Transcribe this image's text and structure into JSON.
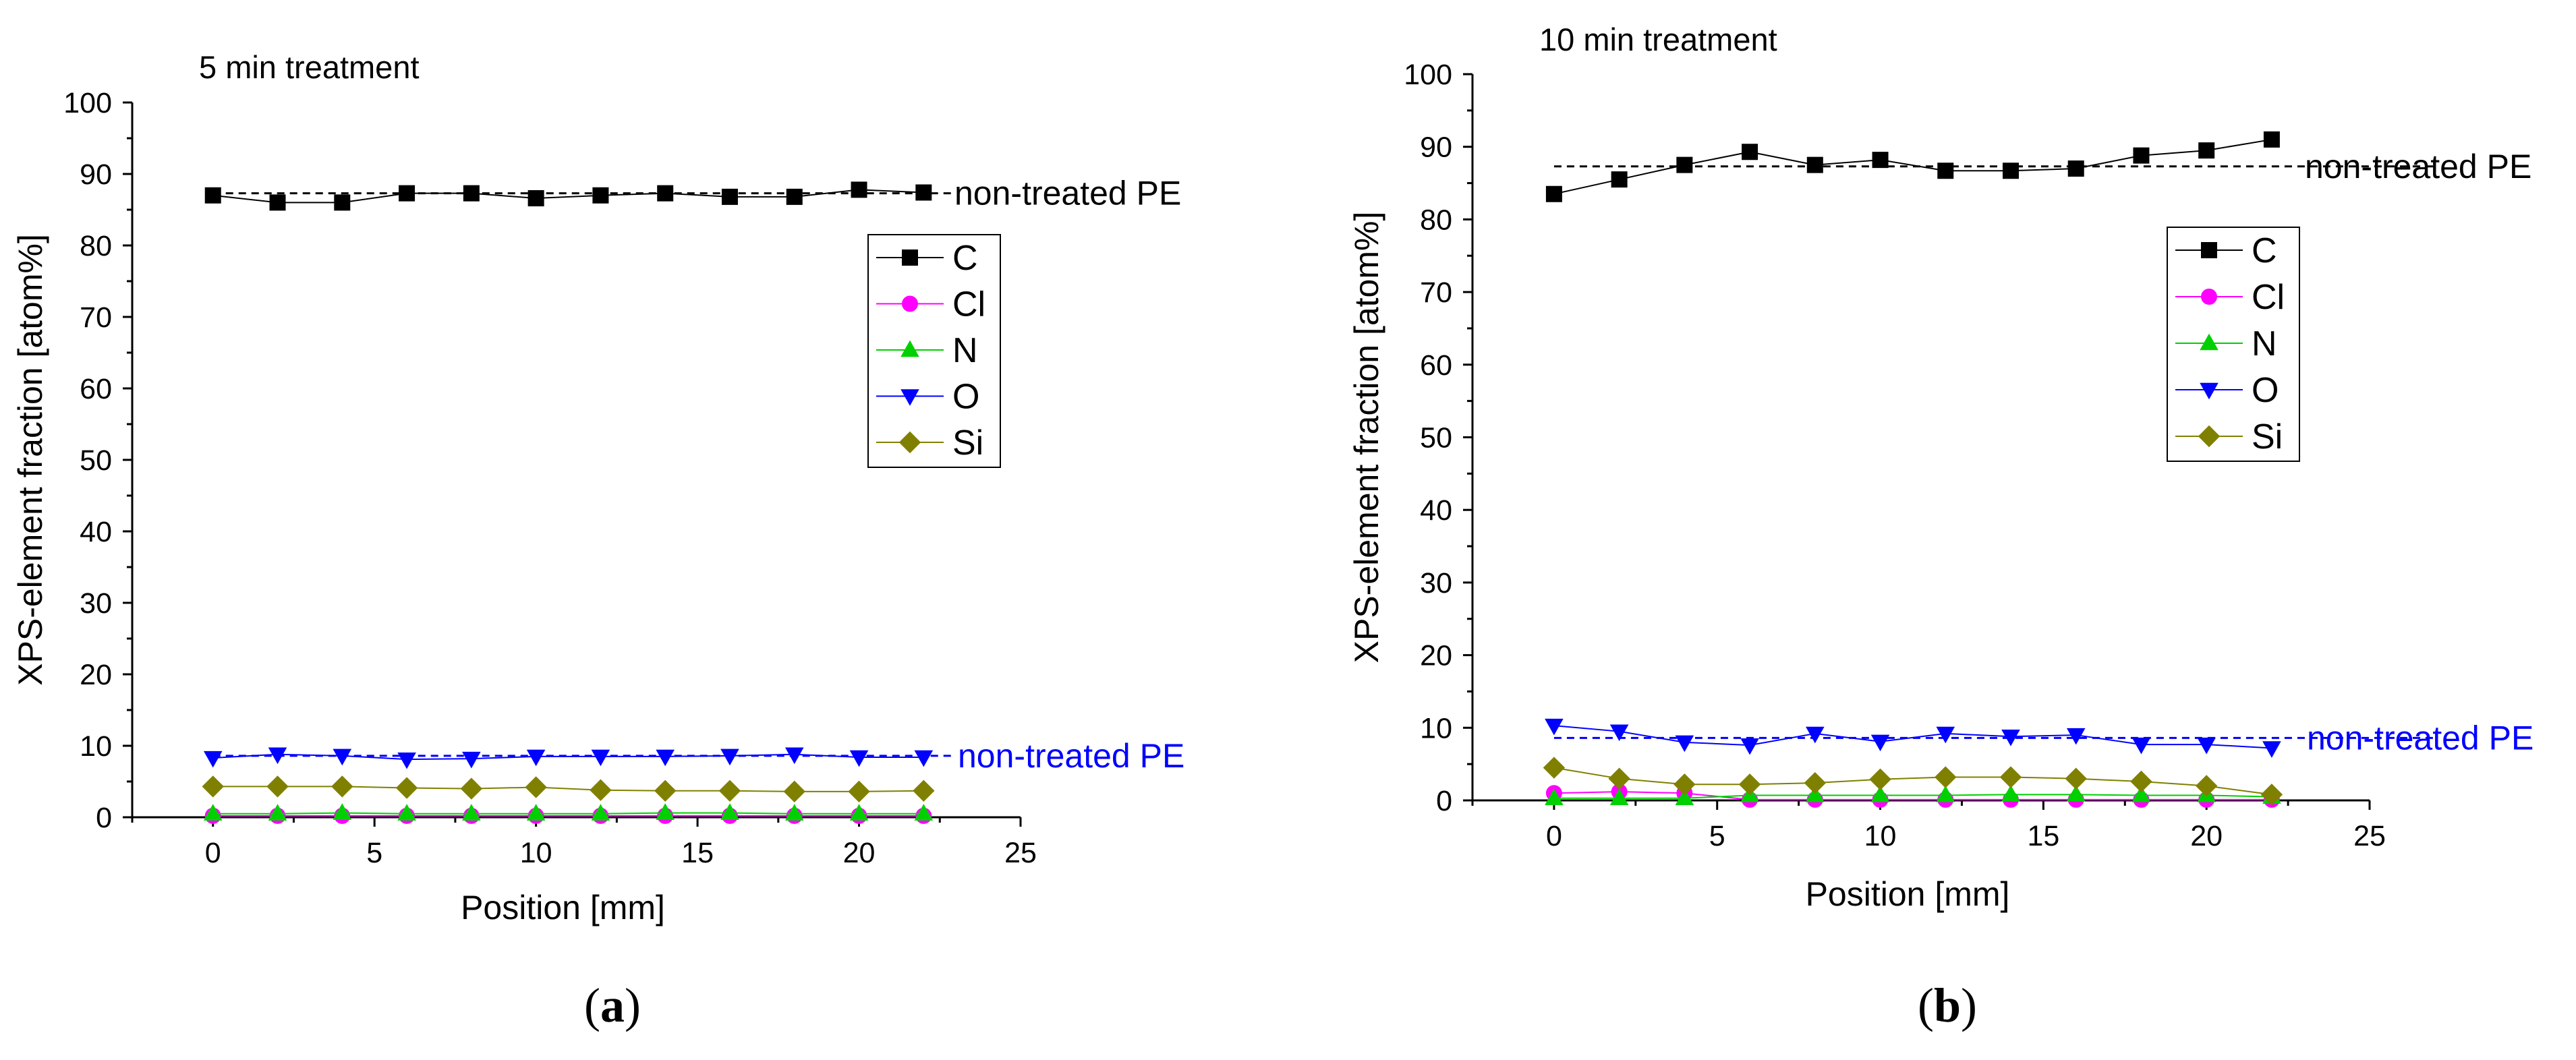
{
  "chart_data": [
    {
      "type": "line",
      "panel_label": "a",
      "title": "5 min treatment",
      "xlabel": "Position [mm]",
      "ylabel": "XPS-element fraction [atom%]",
      "xlim": [
        -2.5,
        25
      ],
      "ylim": [
        0,
        100
      ],
      "xticks": [
        0,
        5,
        10,
        15,
        20,
        25
      ],
      "yticks": [
        0,
        10,
        20,
        30,
        40,
        50,
        60,
        70,
        80,
        90,
        100
      ],
      "x": [
        0,
        2,
        4,
        6,
        8,
        10,
        12,
        14,
        16,
        18,
        20,
        22
      ],
      "series": [
        {
          "name": "C",
          "color": "#000000",
          "marker": "square",
          "values": [
            87.0,
            86.0,
            86.0,
            87.3,
            87.3,
            86.6,
            87.0,
            87.3,
            86.8,
            86.8,
            87.8,
            87.4
          ]
        },
        {
          "name": "Cl",
          "color": "#ff00ff",
          "marker": "circle",
          "values": [
            0.2,
            0.2,
            0.2,
            0.2,
            0.2,
            0.2,
            0.2,
            0.2,
            0.2,
            0.2,
            0.2,
            0.2
          ]
        },
        {
          "name": "N",
          "color": "#00d000",
          "marker": "triangle-up",
          "values": [
            0.5,
            0.5,
            0.6,
            0.5,
            0.5,
            0.5,
            0.5,
            0.6,
            0.6,
            0.5,
            0.5,
            0.5
          ]
        },
        {
          "name": "O",
          "color": "#0000ff",
          "marker": "triangle-down",
          "values": [
            8.3,
            8.8,
            8.6,
            8.1,
            8.2,
            8.5,
            8.5,
            8.5,
            8.6,
            8.8,
            8.4,
            8.4
          ]
        },
        {
          "name": "Si",
          "color": "#808000",
          "marker": "diamond",
          "values": [
            4.3,
            4.3,
            4.3,
            4.1,
            4.0,
            4.2,
            3.8,
            3.7,
            3.7,
            3.6,
            3.6,
            3.7
          ]
        }
      ],
      "reference_lines": [
        {
          "label": "non-treated PE",
          "y": 87.3,
          "color": "#000000",
          "x_range": [
            0,
            23
          ]
        },
        {
          "label": "non-treated PE",
          "y": 8.6,
          "color": "#0000ff",
          "x_range": [
            0,
            23
          ]
        }
      ],
      "legend": {
        "position": "center-right",
        "entries": [
          "C",
          "Cl",
          "N",
          "O",
          "Si"
        ]
      }
    },
    {
      "type": "line",
      "panel_label": "b",
      "title": "10 min treatment",
      "xlabel": "Position [mm]",
      "ylabel": "XPS-element fraction [atom%]",
      "xlim": [
        -2.5,
        25
      ],
      "ylim": [
        0,
        100
      ],
      "xticks": [
        0,
        5,
        10,
        15,
        20,
        25
      ],
      "yticks": [
        0,
        10,
        20,
        30,
        40,
        50,
        60,
        70,
        80,
        90,
        100
      ],
      "x": [
        0,
        2,
        4,
        6,
        8,
        10,
        12,
        14,
        16,
        18,
        20,
        22
      ],
      "series": [
        {
          "name": "C",
          "color": "#000000",
          "marker": "square",
          "values": [
            83.5,
            85.5,
            87.5,
            89.3,
            87.5,
            88.2,
            86.7,
            86.7,
            87.0,
            88.8,
            89.5,
            91.0
          ]
        },
        {
          "name": "Cl",
          "color": "#ff00ff",
          "marker": "circle",
          "values": [
            1.0,
            1.2,
            1.0,
            0.1,
            0.1,
            0.1,
            0.1,
            0.1,
            0.1,
            0.1,
            0.1,
            0.1
          ]
        },
        {
          "name": "N",
          "color": "#00d000",
          "marker": "triangle-up",
          "values": [
            0.3,
            0.3,
            0.3,
            0.7,
            0.7,
            0.7,
            0.7,
            0.8,
            0.8,
            0.7,
            0.7,
            0.5
          ]
        },
        {
          "name": "O",
          "color": "#0000ff",
          "marker": "triangle-down",
          "values": [
            10.3,
            9.5,
            8.0,
            7.6,
            9.2,
            8.1,
            9.2,
            8.8,
            9.0,
            7.7,
            7.7,
            7.2
          ]
        },
        {
          "name": "Si",
          "color": "#808000",
          "marker": "diamond",
          "values": [
            4.5,
            3.0,
            2.2,
            2.2,
            2.4,
            2.9,
            3.2,
            3.2,
            3.0,
            2.6,
            2.0,
            0.8
          ]
        }
      ],
      "reference_lines": [
        {
          "label": "non-treated PE",
          "y": 87.3,
          "color": "#000000",
          "x_range": [
            0,
            27
          ]
        },
        {
          "label": "non-treated PE",
          "y": 8.6,
          "color": "#0000ff",
          "x_range": [
            0,
            27
          ]
        }
      ],
      "legend": {
        "position": "center-right",
        "entries": [
          "C",
          "Cl",
          "N",
          "O",
          "Si"
        ]
      }
    }
  ]
}
